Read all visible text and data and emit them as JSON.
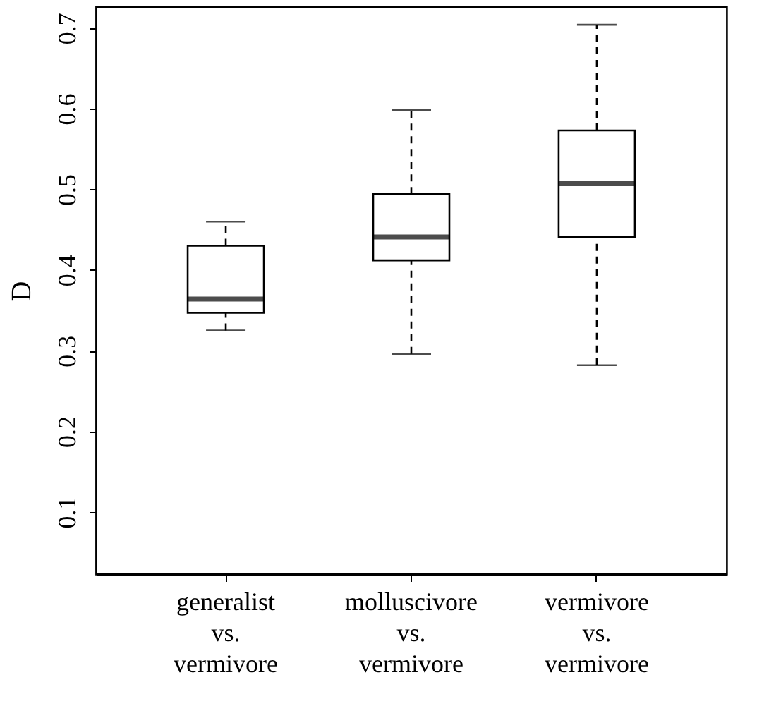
{
  "chart_data": {
    "type": "box",
    "ylabel": "D",
    "categories": [
      "generalist\nvs.\nvermivore",
      "molluscivore\nvs.\nvermivore",
      "vermivore\nvs.\nvermivore"
    ],
    "boxes": [
      {
        "low": 0.325,
        "q1": 0.347,
        "median": 0.364,
        "q3": 0.43,
        "high": 0.46
      },
      {
        "low": 0.296,
        "q1": 0.412,
        "median": 0.441,
        "q3": 0.494,
        "high": 0.598
      },
      {
        "low": 0.282,
        "q1": 0.441,
        "median": 0.507,
        "q3": 0.573,
        "high": 0.704
      }
    ],
    "ylim": [
      0.023,
      0.726
    ],
    "yticks": [
      0.1,
      0.2,
      0.3,
      0.4,
      0.5,
      0.6,
      0.7
    ],
    "grid": false
  }
}
